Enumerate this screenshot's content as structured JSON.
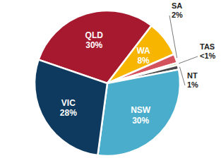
{
  "chart_data": {
    "type": "pie",
    "categories": [
      "QLD",
      "WA",
      "SA",
      "TAS",
      "NT",
      "NSW",
      "VIC"
    ],
    "values": [
      30,
      8,
      2,
      0.5,
      1,
      30,
      28
    ],
    "value_labels": [
      "30%",
      "8%",
      "2%",
      "<1%",
      "1%",
      "30%",
      "28%"
    ],
    "colors": [
      "#a6192e",
      "#f7b500",
      "#d4525c",
      "#8cc63f",
      "#4a4a4a",
      "#4aadcb",
      "#0d3a5e"
    ],
    "data_labels": true
  }
}
